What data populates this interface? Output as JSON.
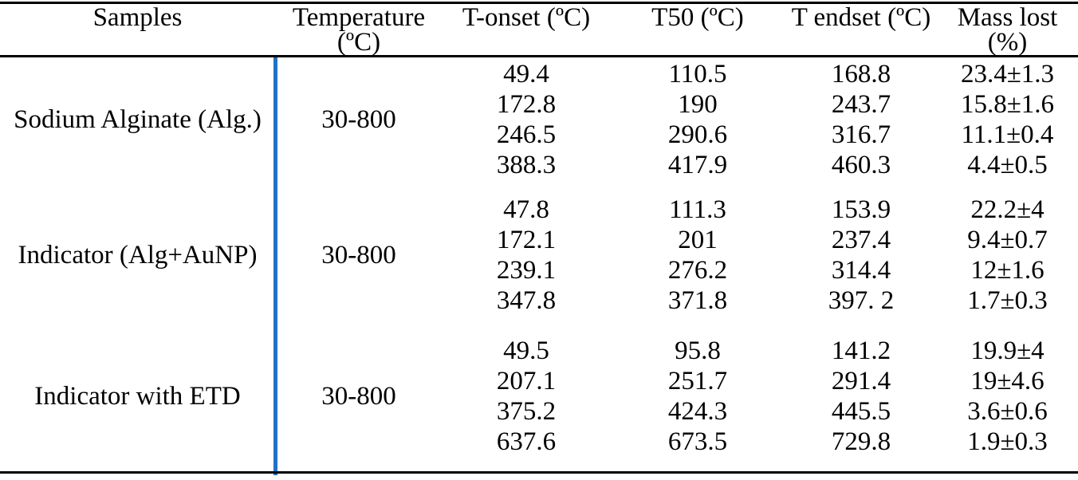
{
  "table": {
    "accent_color": "#1f72c4",
    "text_color": "#000000",
    "rule_color": "#000000",
    "columns": [
      {
        "label": "Samples",
        "sublabel": ""
      },
      {
        "label": "Temperature",
        "sublabel": "(ºC)"
      },
      {
        "label": "T-onset (ºC)",
        "sublabel": ""
      },
      {
        "label": "T50 (ºC)",
        "sublabel": ""
      },
      {
        "label": "T endset (ºC)",
        "sublabel": ""
      },
      {
        "label": "Mass lost",
        "sublabel": "(%)"
      }
    ],
    "groups": [
      {
        "sample": "Sodium Alginate (Alg.)",
        "temperature_range": "30-800",
        "rows": [
          {
            "t_onset": "49.4",
            "t50": "110.5",
            "t_endset": "168.8",
            "mass_lost": "23.4±1.3"
          },
          {
            "t_onset": "172.8",
            "t50": "190",
            "t_endset": "243.7",
            "mass_lost": "15.8±1.6"
          },
          {
            "t_onset": "246.5",
            "t50": "290.6",
            "t_endset": "316.7",
            "mass_lost": "11.1±0.4"
          },
          {
            "t_onset": "388.3",
            "t50": "417.9",
            "t_endset": "460.3",
            "mass_lost": "4.4±0.5"
          }
        ]
      },
      {
        "sample": "Indicator (Alg+AuNP)",
        "temperature_range": "30-800",
        "rows": [
          {
            "t_onset": "47.8",
            "t50": "111.3",
            "t_endset": "153.9",
            "mass_lost": "22.2±4"
          },
          {
            "t_onset": "172.1",
            "t50": "201",
            "t_endset": "237.4",
            "mass_lost": "9.4±0.7"
          },
          {
            "t_onset": "239.1",
            "t50": "276.2",
            "t_endset": "314.4",
            "mass_lost": "12±1.6"
          },
          {
            "t_onset": "347.8",
            "t50": "371.8",
            "t_endset": "397. 2",
            "mass_lost": "1.7±0.3"
          }
        ]
      },
      {
        "sample": "Indicator with ETD",
        "temperature_range": "30-800",
        "rows": [
          {
            "t_onset": "49.5",
            "t50": "95.8",
            "t_endset": "141.2",
            "mass_lost": "19.9±4"
          },
          {
            "t_onset": "207.1",
            "t50": "251.7",
            "t_endset": "291.4",
            "mass_lost": "19±4.6"
          },
          {
            "t_onset": "375.2",
            "t50": "424.3",
            "t_endset": "445.5",
            "mass_lost": "3.6±0.6"
          },
          {
            "t_onset": "637.6",
            "t50": "673.5",
            "t_endset": "729.8",
            "mass_lost": "1.9±0.3"
          }
        ]
      }
    ]
  }
}
